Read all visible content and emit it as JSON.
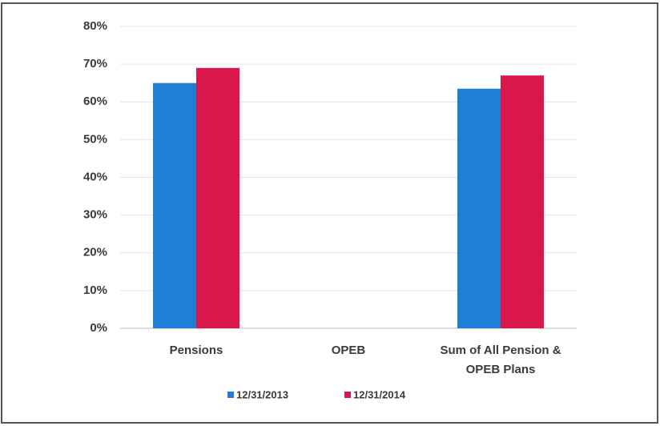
{
  "chart_data": {
    "type": "bar",
    "categories": [
      "Pensions",
      "OPEB",
      "Sum of All Pension & OPEB Plans"
    ],
    "series": [
      {
        "name": "12/31/2013",
        "color": "#1f7fd6",
        "values": [
          65,
          0,
          63.5
        ]
      },
      {
        "name": "12/31/2014",
        "color": "#d9174b",
        "values": [
          69,
          0,
          67
        ]
      }
    ],
    "ylim": [
      0,
      80
    ],
    "yticks": [
      {
        "value": 0,
        "label": "0%"
      },
      {
        "value": 10,
        "label": "10%"
      },
      {
        "value": 20,
        "label": "20%"
      },
      {
        "value": 30,
        "label": "30%"
      },
      {
        "value": 40,
        "label": "40%"
      },
      {
        "value": 50,
        "label": "50%"
      },
      {
        "value": 60,
        "label": "60%"
      },
      {
        "value": 70,
        "label": "70%"
      },
      {
        "value": 80,
        "label": "80%"
      }
    ],
    "grid": true,
    "legend": "bottom"
  }
}
